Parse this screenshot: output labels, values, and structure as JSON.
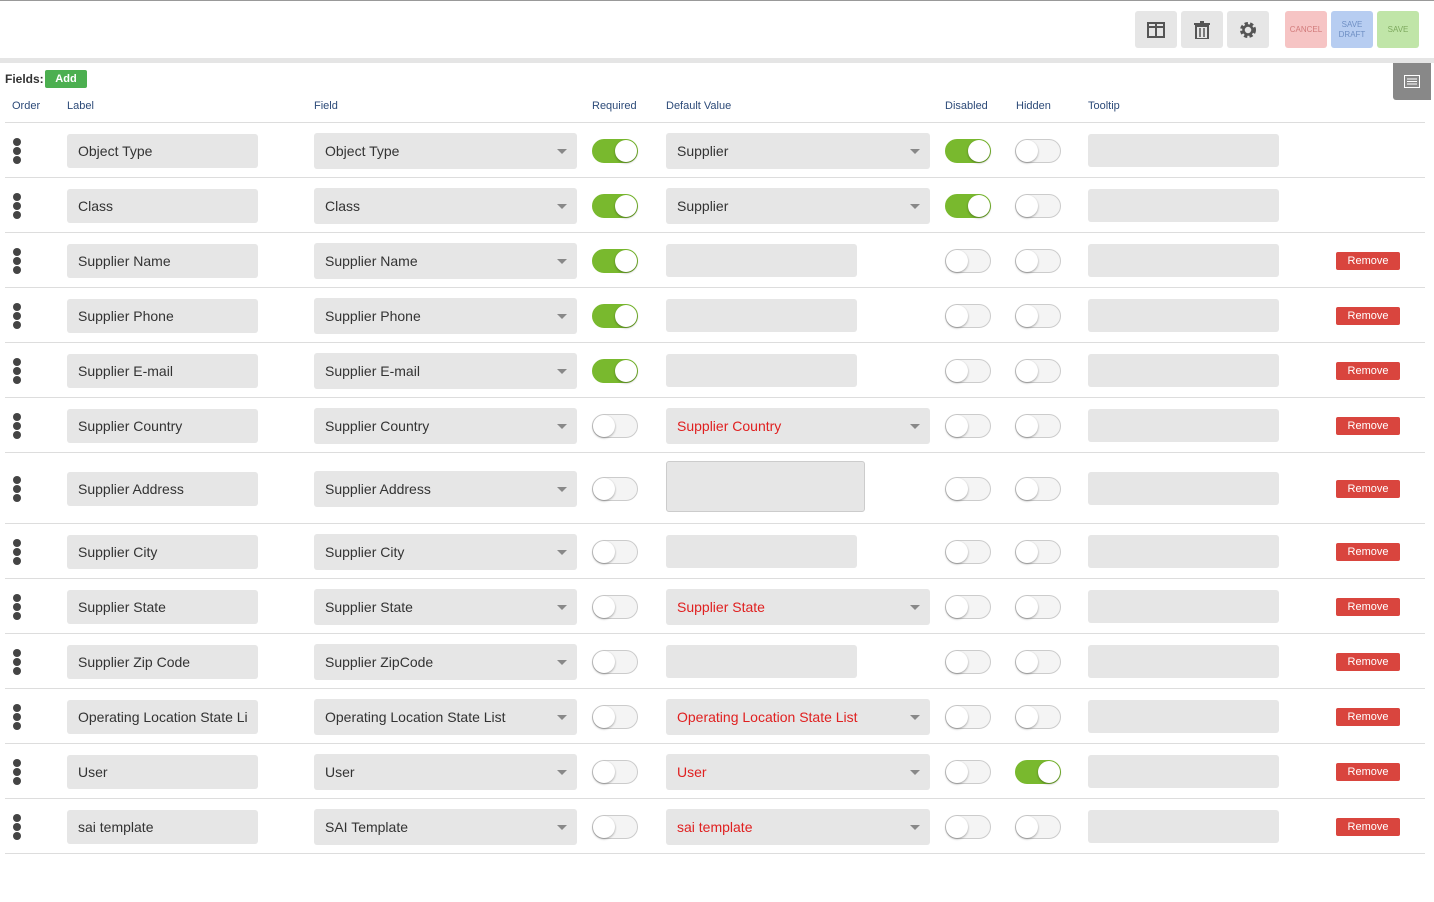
{
  "toolbar": {
    "cancel": "CANCEL",
    "save_draft": "SAVE DRAFT",
    "save": "SAVE"
  },
  "fields_label": "Fields:",
  "add_button": "Add",
  "columns": {
    "order": "Order",
    "label": "Label",
    "field": "Field",
    "required": "Required",
    "default_value": "Default Value",
    "disabled": "Disabled",
    "hidden": "Hidden",
    "tooltip": "Tooltip"
  },
  "remove_button": "Remove",
  "rows": [
    {
      "label": "Object Type",
      "field": "Object Type",
      "required": true,
      "default_kind": "select",
      "default_value": "Supplier",
      "default_error": false,
      "disabled": true,
      "hidden": false,
      "removable": false
    },
    {
      "label": "Class",
      "field": "Class",
      "required": true,
      "default_kind": "select",
      "default_value": "Supplier",
      "default_error": false,
      "disabled": true,
      "hidden": false,
      "removable": false
    },
    {
      "label": "Supplier Name",
      "field": "Supplier Name",
      "required": true,
      "default_kind": "input",
      "default_value": null,
      "default_error": false,
      "disabled": false,
      "hidden": false,
      "removable": true
    },
    {
      "label": "Supplier Phone",
      "field": "Supplier Phone",
      "required": true,
      "default_kind": "input",
      "default_value": null,
      "default_error": false,
      "disabled": false,
      "hidden": false,
      "removable": true
    },
    {
      "label": "Supplier E-mail",
      "field": "Supplier E-mail",
      "required": true,
      "default_kind": "input",
      "default_value": null,
      "default_error": false,
      "disabled": false,
      "hidden": false,
      "removable": true
    },
    {
      "label": "Supplier Country",
      "field": "Supplier Country",
      "required": false,
      "default_kind": "select",
      "default_value": "Supplier Country",
      "default_error": true,
      "disabled": false,
      "hidden": false,
      "removable": true
    },
    {
      "label": "Supplier Address",
      "field": "Supplier Address",
      "required": false,
      "default_kind": "textarea",
      "default_value": null,
      "default_error": false,
      "disabled": false,
      "hidden": false,
      "removable": true
    },
    {
      "label": "Supplier City",
      "field": "Supplier City",
      "required": false,
      "default_kind": "input",
      "default_value": null,
      "default_error": false,
      "disabled": false,
      "hidden": false,
      "removable": true
    },
    {
      "label": "Supplier State",
      "field": "Supplier State",
      "required": false,
      "default_kind": "select",
      "default_value": "Supplier State",
      "default_error": true,
      "disabled": false,
      "hidden": false,
      "removable": true
    },
    {
      "label": "Supplier Zip Code",
      "field": "Supplier ZipCode",
      "required": false,
      "default_kind": "input",
      "default_value": null,
      "default_error": false,
      "disabled": false,
      "hidden": false,
      "removable": true
    },
    {
      "label": "Operating Location State Li",
      "field": "Operating Location State List",
      "required": false,
      "default_kind": "select",
      "default_value": "Operating Location State List",
      "default_error": true,
      "disabled": false,
      "hidden": false,
      "removable": true
    },
    {
      "label": "User",
      "field": "User",
      "required": false,
      "default_kind": "select",
      "default_value": "User",
      "default_error": true,
      "disabled": false,
      "hidden": true,
      "removable": true
    },
    {
      "label": "sai template",
      "field": "SAI Template",
      "required": false,
      "default_kind": "select",
      "default_value": "sai template",
      "default_error": true,
      "disabled": false,
      "hidden": false,
      "removable": true
    }
  ]
}
